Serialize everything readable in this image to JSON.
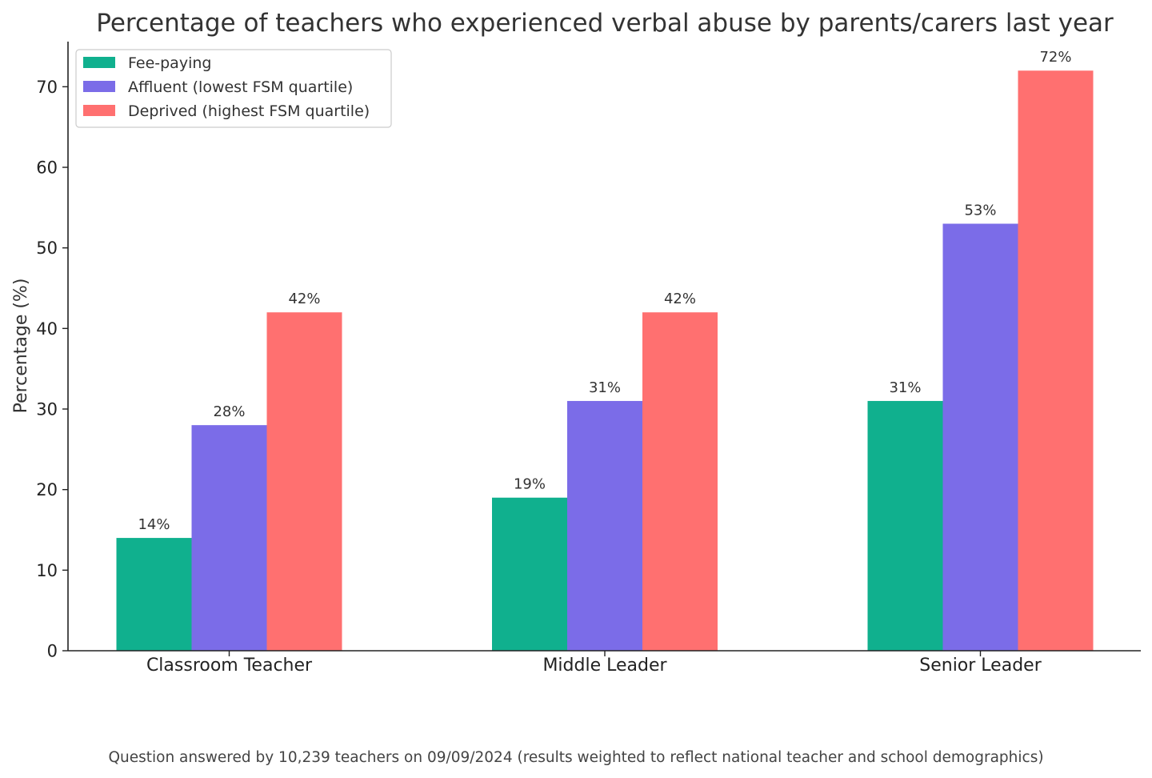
{
  "chart_data": {
    "type": "bar",
    "title": "Percentage of teachers who experienced verbal abuse by parents/carers last year",
    "xlabel": "",
    "ylabel": "Percentage (%)",
    "ylim": [
      0,
      75.6
    ],
    "yticks": [
      0,
      10,
      20,
      30,
      40,
      50,
      60,
      70
    ],
    "categories": [
      "Classroom Teacher",
      "Middle Leader",
      "Senior Leader"
    ],
    "series": [
      {
        "name": "Fee-paying",
        "values": [
          14,
          19,
          31
        ],
        "color": "#10b08e"
      },
      {
        "name": "Affluent (lowest FSM quartile)",
        "values": [
          28,
          31,
          53
        ],
        "color": "#7b6ce8"
      },
      {
        "name": "Deprived (highest FSM quartile)",
        "values": [
          42,
          42,
          72
        ],
        "color": "#ff7070"
      }
    ],
    "value_suffix": "%",
    "legend_position": "upper-left",
    "grid": false
  },
  "footnote": "Question answered by 10,239 teachers on 09/09/2024 (results weighted to reflect national teacher and school demographics)"
}
